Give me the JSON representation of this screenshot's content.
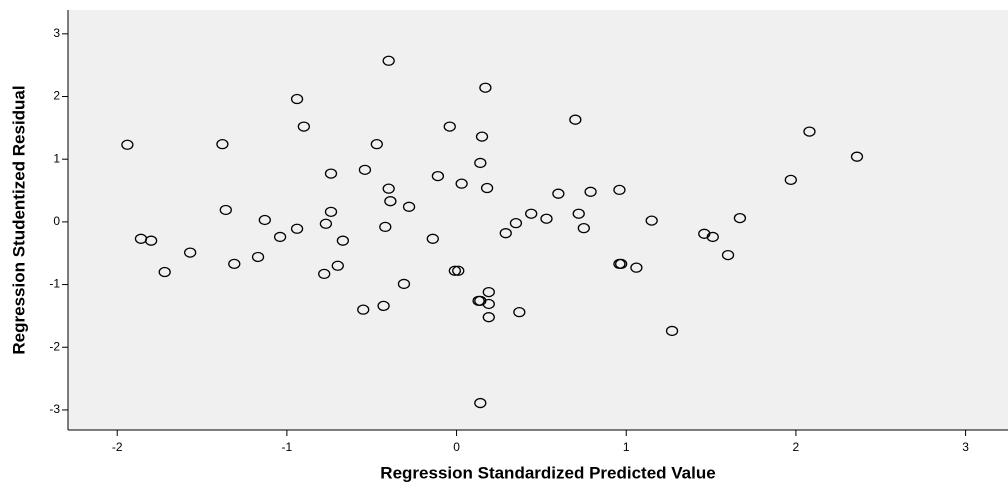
{
  "chart_data": {
    "type": "scatter",
    "x_label": "Regression Standardized Predicted Value",
    "y_label": "Regression Studentized Residual",
    "x": [
      -1.94,
      -0.4,
      0.17,
      -0.94,
      -1.38,
      -0.9,
      -0.47,
      -0.04,
      0.15,
      0.7,
      2.08,
      2.36,
      0.14,
      -0.54,
      -0.74,
      -0.11,
      0.03,
      0.18,
      -0.4,
      1.97,
      0.96,
      0.79,
      0.6,
      -0.39,
      -0.28,
      -1.36,
      -0.74,
      0.44,
      0.72,
      0.53,
      -1.13,
      1.15,
      1.67,
      0.35,
      -0.77,
      -0.42,
      0.75,
      -0.94,
      0.29,
      -1.04,
      1.46,
      1.51,
      -1.86,
      -1.8,
      -0.67,
      -0.14,
      -1.57,
      -1.17,
      1.6,
      -1.31,
      -0.7,
      -1.72,
      -0.78,
      -0.01,
      0.01,
      0.96,
      0.97,
      1.06,
      -0.31,
      0.19,
      0.13,
      0.14,
      0.19,
      -0.43,
      -0.55,
      0.37,
      0.19,
      1.27,
      0.14
    ],
    "values": [
      1.23,
      2.57,
      2.14,
      1.96,
      1.24,
      1.52,
      1.24,
      1.52,
      1.36,
      1.63,
      1.44,
      1.04,
      0.94,
      0.83,
      0.77,
      0.73,
      0.61,
      0.54,
      0.53,
      0.67,
      0.51,
      0.48,
      0.45,
      0.33,
      0.24,
      0.19,
      0.16,
      0.13,
      0.13,
      0.05,
      0.03,
      0.02,
      0.06,
      -0.02,
      -0.03,
      -0.08,
      -0.1,
      -0.11,
      -0.18,
      -0.24,
      -0.19,
      -0.24,
      -0.27,
      -0.3,
      -0.3,
      -0.27,
      -0.49,
      -0.56,
      -0.53,
      -0.67,
      -0.7,
      -0.8,
      -0.83,
      -0.78,
      -0.78,
      -0.67,
      -0.67,
      -0.73,
      -0.99,
      -1.12,
      -1.26,
      -1.26,
      -1.31,
      -1.34,
      -1.4,
      -1.44,
      -1.52,
      -1.74,
      -2.89
    ],
    "color": "#000000",
    "background": "#f0f0f0",
    "xlim": [
      -2.29,
      3.25
    ],
    "xticks": [
      -2,
      -1,
      0,
      1,
      2,
      3
    ],
    "ylim": [
      -3.32,
      3.38
    ],
    "yticks": [
      -3,
      -2,
      -1,
      0,
      1,
      2,
      3
    ]
  }
}
